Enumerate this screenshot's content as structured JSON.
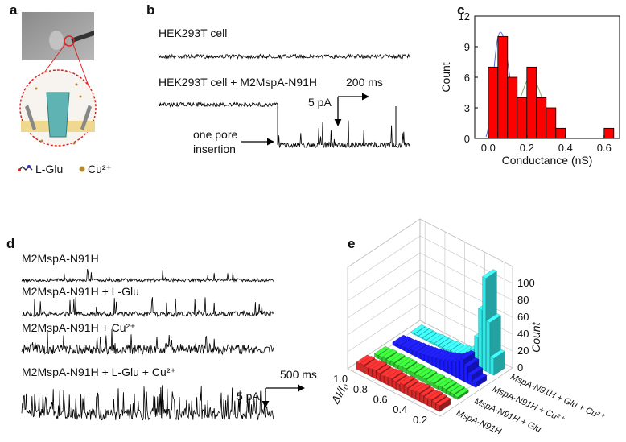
{
  "figure": {
    "panel_labels": [
      "a",
      "b",
      "c",
      "d",
      "e"
    ],
    "a": {
      "legend": [
        "L-Glu",
        "Cu²⁺"
      ]
    },
    "b": {
      "traces": [
        "HEK293T cell",
        "HEK293T cell + M2MspA-N91H"
      ],
      "annotation": [
        "one pore",
        "insertion"
      ],
      "scale_time": "200 ms",
      "scale_current": "5 pA"
    },
    "d": {
      "traces": [
        "M2MspA-N91H",
        "M2MspA-N91H + L-Glu",
        "M2MspA-N91H + Cu²⁺",
        "M2MspA-N91H + L-Glu + Cu²⁺"
      ],
      "scale_time": "500 ms",
      "scale_current": "5 pA"
    }
  },
  "chart_data": [
    {
      "type": "histogram",
      "xlabel": "Conductance (nS)",
      "ylabel": "Count",
      "bins": [
        0,
        0.05,
        0.1,
        0.15,
        0.2,
        0.25,
        0.3,
        0.35,
        0.4,
        0.45,
        0.5,
        0.55,
        0.6,
        0.65
      ],
      "counts": [
        7,
        10,
        6,
        4,
        7,
        4,
        3,
        1,
        0,
        0,
        0,
        0,
        1
      ],
      "color": "#ff0000",
      "xlim": [
        -0.07,
        0.68
      ],
      "ylim": [
        0,
        12
      ],
      "xticks": [
        {
          "value": 0,
          "label": "0.0"
        },
        0.2,
        0.4,
        0.6
      ],
      "yticks": [
        0,
        3,
        6,
        9,
        12
      ]
    },
    {
      "type": "bar3d",
      "xlabel": "ΔI/I₀",
      "zlabel": "Count",
      "x": [
        0.98,
        0.94,
        0.9,
        0.86,
        0.82,
        0.78,
        0.74,
        0.7,
        0.66,
        0.62,
        0.58,
        0.54,
        0.5,
        0.46,
        0.42,
        0.38,
        0.34,
        0.3,
        0.26,
        0.22,
        0.18
      ],
      "series": [
        {
          "name": "MspA-N91H",
          "color": "#d42a2a",
          "values": [
            8,
            9,
            8,
            9,
            10,
            9,
            8,
            9,
            10,
            9,
            8,
            10,
            9,
            8,
            9,
            10,
            9,
            8,
            9,
            8,
            7
          ]
        },
        {
          "name": "MspA-N91H + Glu",
          "color": "#33cc33",
          "values": [
            4,
            4,
            5,
            4,
            5,
            4,
            5,
            5,
            4,
            5,
            4,
            5,
            5,
            4,
            5,
            4,
            5,
            5,
            4,
            4,
            3
          ]
        },
        {
          "name": "MspA-N91H + Cu²⁺",
          "color": "#1a1aff",
          "values": [
            3,
            4,
            4,
            5,
            5,
            6,
            6,
            7,
            8,
            9,
            10,
            11,
            12,
            14,
            16,
            18,
            22,
            26,
            20,
            12,
            6
          ]
        },
        {
          "name": "MspA-N91H + Glu + Cu²⁺",
          "color": "#33e6e6",
          "values": [
            1,
            1,
            1,
            1,
            1,
            2,
            2,
            2,
            2,
            3,
            3,
            4,
            5,
            6,
            10,
            18,
            35,
            70,
            110,
            60,
            20
          ]
        }
      ],
      "xlim": [
        1.05,
        0.12
      ],
      "xticks": [
        {
          "value": 1,
          "label": "1.0"
        },
        0.8,
        0.6,
        0.4,
        0.2
      ],
      "zlim": [
        0,
        120
      ],
      "zticks": [
        0,
        20,
        40,
        60,
        80,
        100
      ]
    }
  ]
}
